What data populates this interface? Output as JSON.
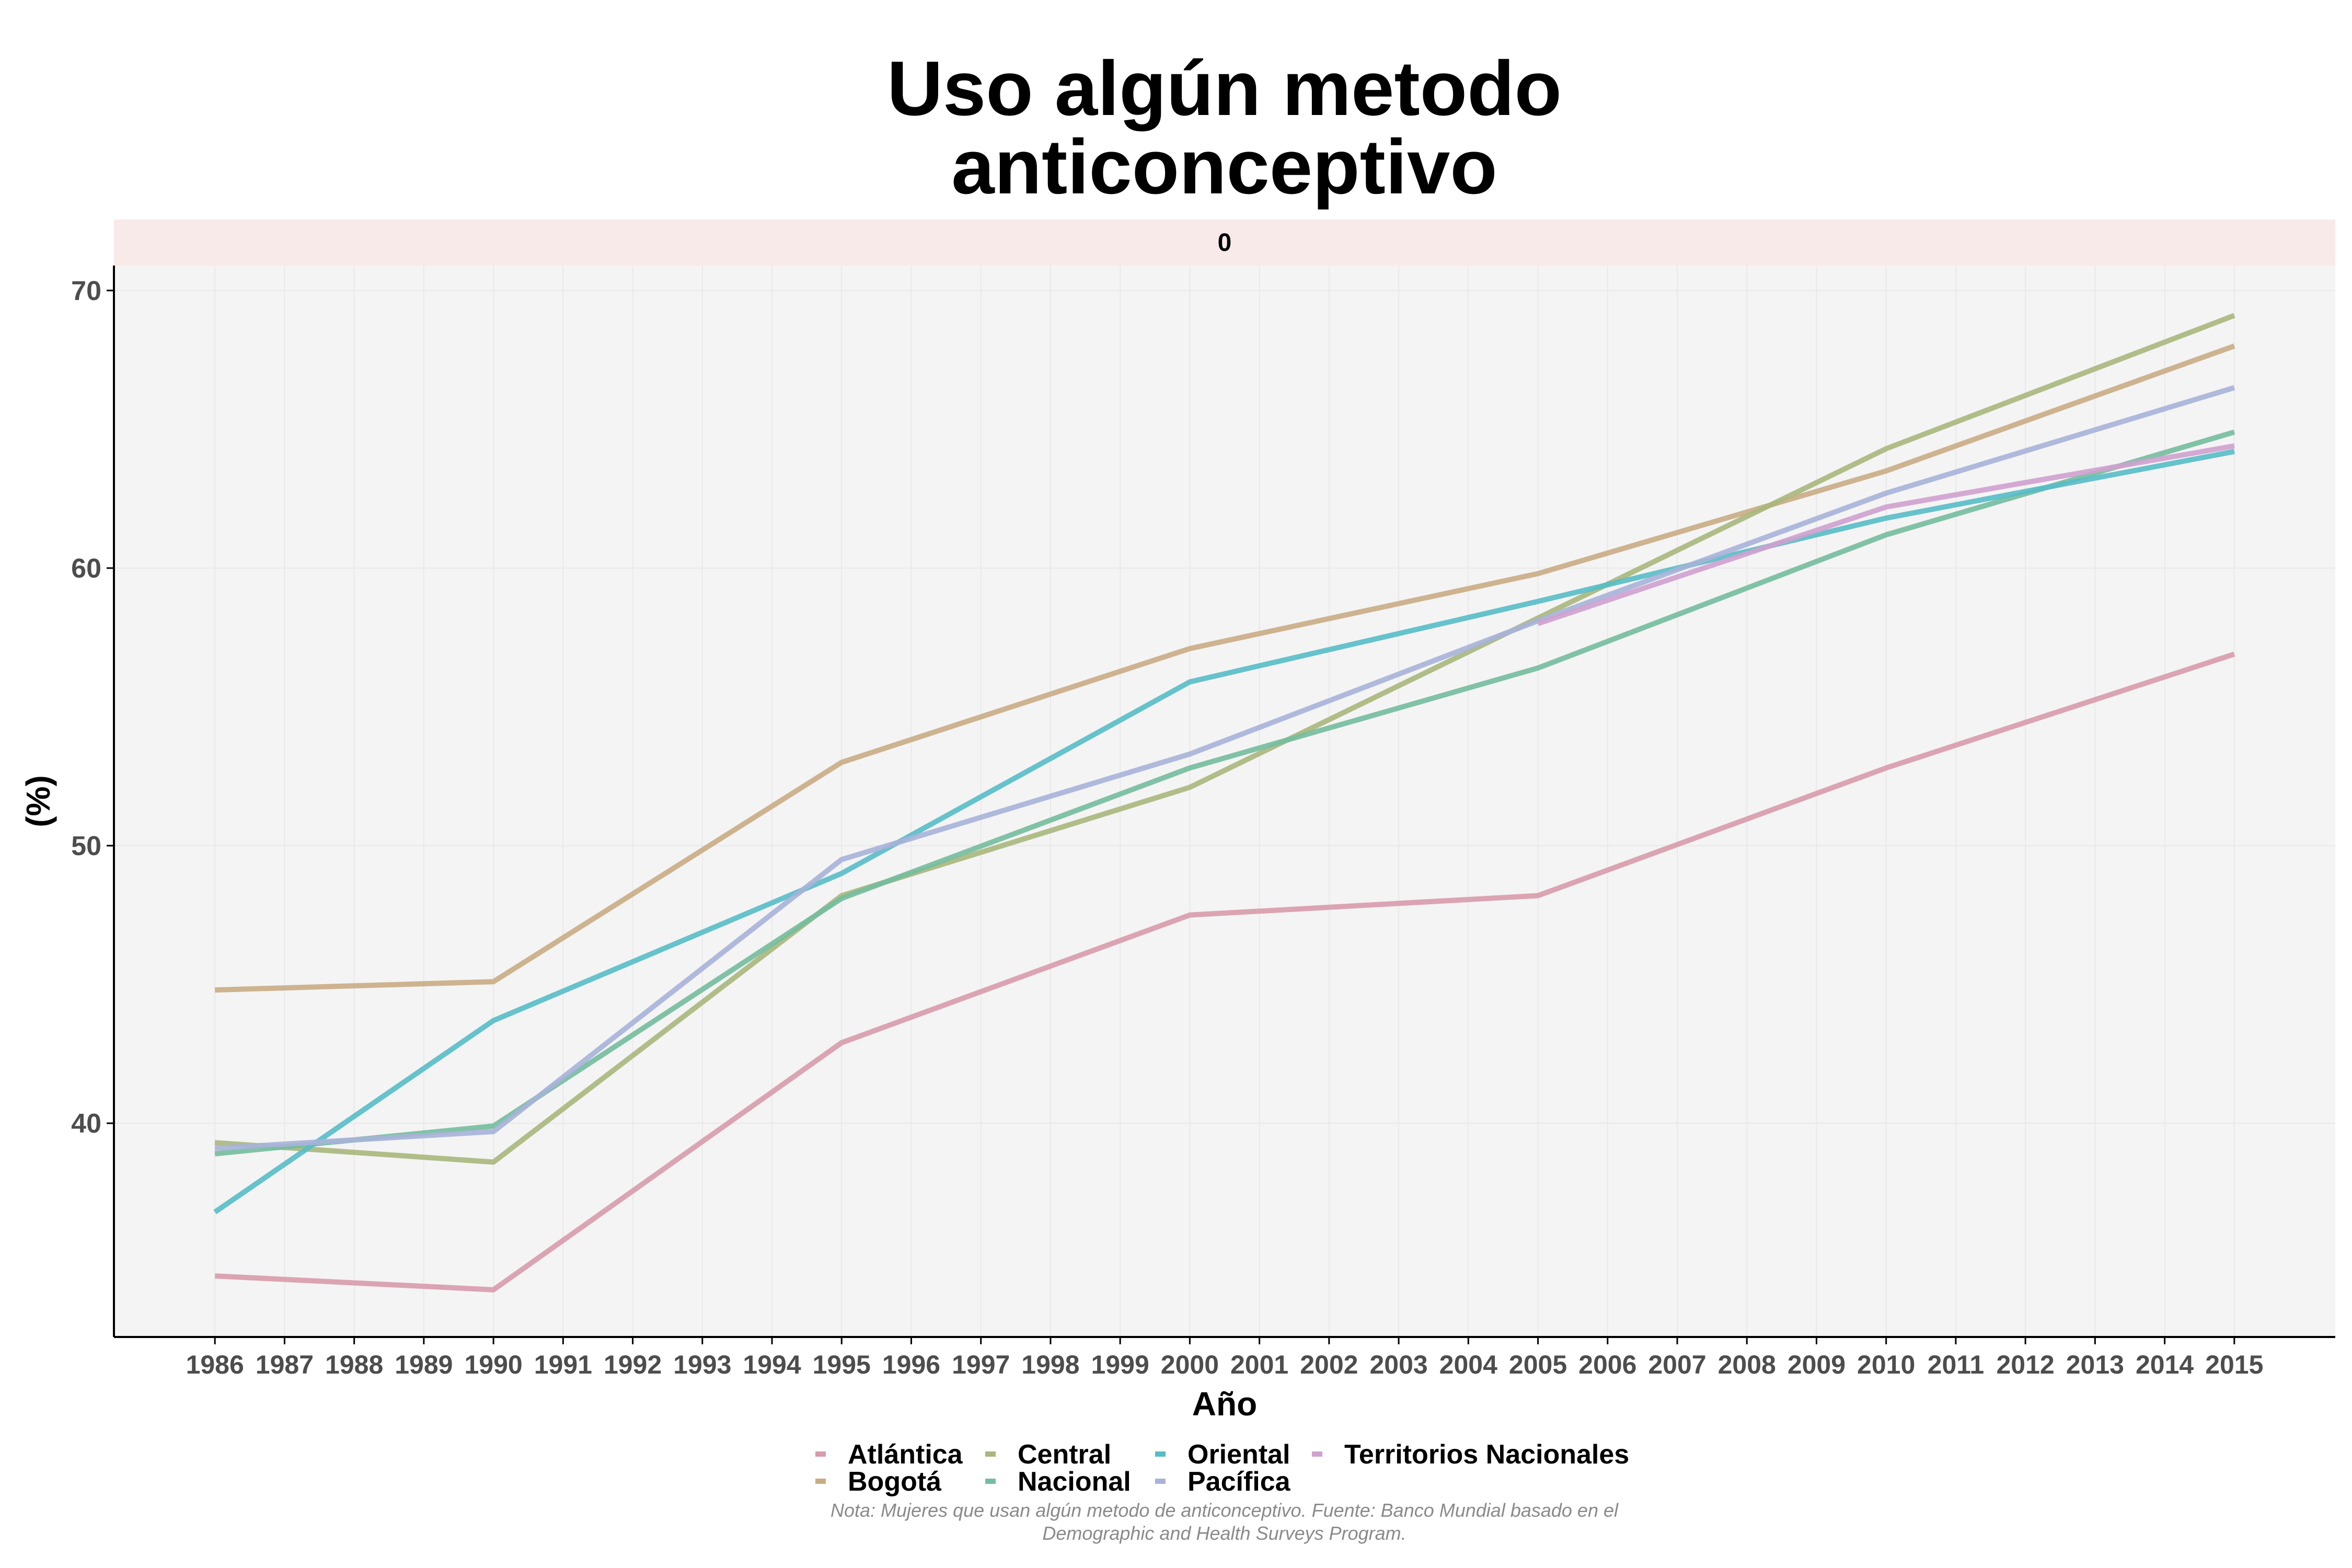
{
  "chart_data": {
    "type": "line",
    "title_lines": [
      "Uso algún metodo",
      "anticonceptivo"
    ],
    "facet_label": "0",
    "xlabel": "Año",
    "ylabel": "(%)",
    "x": [
      1986,
      1987,
      1988,
      1989,
      1990,
      1991,
      1992,
      1993,
      1994,
      1995,
      1996,
      1997,
      1998,
      1999,
      2000,
      2001,
      2002,
      2003,
      2004,
      2005,
      2006,
      2007,
      2008,
      2009,
      2010,
      2011,
      2012,
      2013,
      2014,
      2015
    ],
    "xlim": [
      1984.55,
      2016.45
    ],
    "ylim": [
      32.3,
      70.9
    ],
    "yticks": [
      40,
      50,
      60,
      70
    ],
    "grid": true,
    "legend_position": "bottom",
    "series": [
      {
        "name": "Atlántica",
        "color": "#d89bac",
        "x": [
          1986,
          1990,
          1995,
          2000,
          2005,
          2010,
          2015
        ],
        "values": [
          34.5,
          34.0,
          42.9,
          47.5,
          48.2,
          52.8,
          56.9
        ]
      },
      {
        "name": "Bogotá",
        "color": "#c9ac84",
        "x": [
          1986,
          1990,
          1995,
          2000,
          2005,
          2010,
          2015
        ],
        "values": [
          44.8,
          45.1,
          53.0,
          57.1,
          59.8,
          63.5,
          68.0
        ]
      },
      {
        "name": "Central",
        "color": "#a9b77c",
        "x": [
          1986,
          1990,
          1995,
          2000,
          2005,
          2010,
          2015
        ],
        "values": [
          39.3,
          38.6,
          48.2,
          52.1,
          58.2,
          64.3,
          69.1
        ]
      },
      {
        "name": "Nacional",
        "color": "#74bd9f",
        "x": [
          1986,
          1990,
          1995,
          2000,
          2005,
          2010,
          2015
        ],
        "values": [
          38.9,
          39.9,
          48.1,
          52.8,
          56.4,
          61.2,
          64.9
        ]
      },
      {
        "name": "Oriental",
        "color": "#57bcc6",
        "x": [
          1986,
          1990,
          1995,
          2000,
          2005,
          2010,
          2015
        ],
        "values": [
          36.8,
          43.7,
          49.0,
          55.9,
          58.8,
          61.8,
          64.2
        ]
      },
      {
        "name": "Pacífica",
        "color": "#a7b3d9",
        "x": [
          1986,
          1990,
          1995,
          2000,
          2005,
          2010,
          2015
        ],
        "values": [
          39.1,
          39.7,
          49.5,
          53.3,
          58.1,
          62.7,
          66.5
        ]
      },
      {
        "name": "Territorios Nacionales",
        "color": "#cfa1cf",
        "x": [
          2005,
          2010,
          2015
        ],
        "values": [
          58.0,
          62.2,
          64.4
        ]
      }
    ],
    "legend_rows": [
      [
        "Atlántica",
        "Central",
        "Oriental",
        "Territorios Nacionales"
      ],
      [
        "Bogotá",
        "Nacional",
        "Pacífica"
      ]
    ],
    "caption_lines": [
      "Nota: Mujeres que usan algún metodo de anticonceptivo. Fuente: Banco Mundial basado en el",
      "Demographic and Health Surveys Program."
    ]
  }
}
